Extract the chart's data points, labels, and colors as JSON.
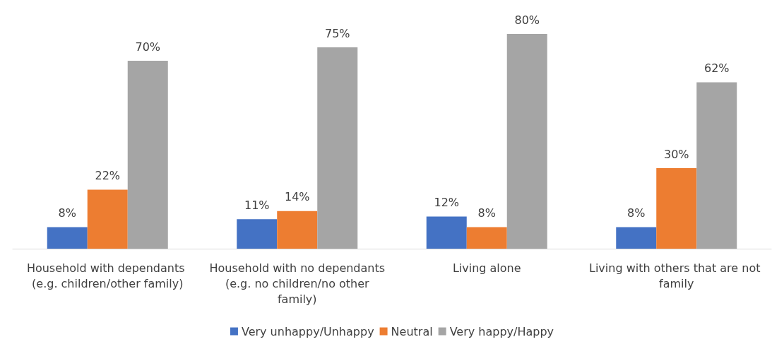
{
  "chart_data": {
    "type": "bar",
    "categories": [
      "Household with dependants (e.g. children/other family)",
      "Household with no dependants (e.g. no children/no other family)",
      "Living alone",
      "Living with others that are not family"
    ],
    "series": [
      {
        "name": "Very unhappy/Unhappy",
        "color": "#4472c4",
        "values": [
          8,
          11,
          12,
          8
        ],
        "value_labels": [
          "8%",
          "11%",
          "12%",
          "8%"
        ]
      },
      {
        "name": "Neutral",
        "color": "#ed7d31",
        "values": [
          22,
          14,
          8,
          30
        ],
        "value_labels": [
          "22%",
          "14%",
          "8%",
          "30%"
        ]
      },
      {
        "name": "Very happy/Happy",
        "color": "#a5a5a5",
        "values": [
          70,
          75,
          80,
          62
        ],
        "value_labels": [
          "70%",
          "75%",
          "80%",
          "62%"
        ]
      }
    ],
    "legend": "bottom"
  }
}
